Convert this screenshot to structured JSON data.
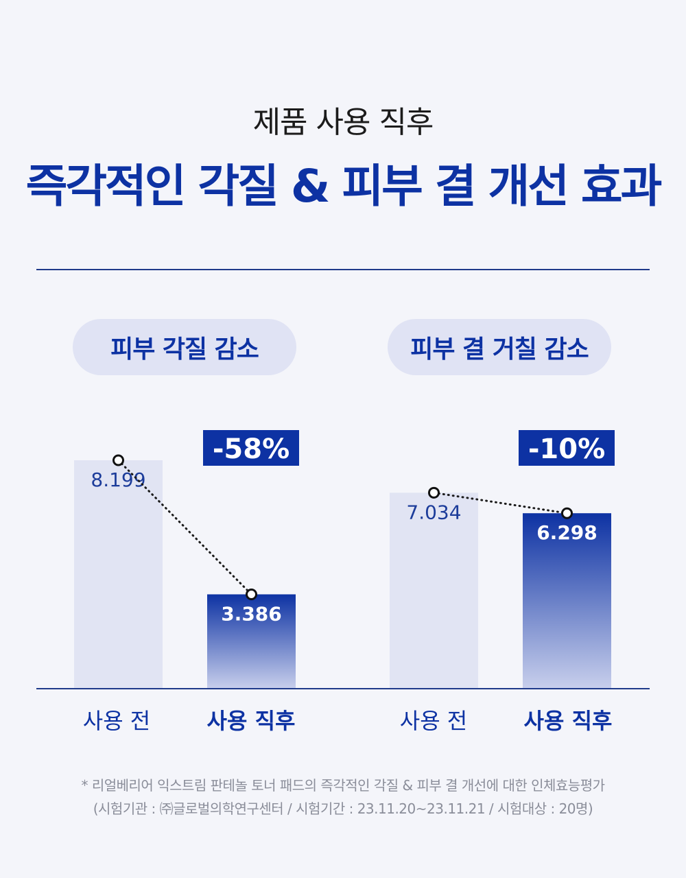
{
  "header": {
    "subtitle": "제품 사용 직후",
    "title": "즉각적인 각질 & 피부 결 개선 효과"
  },
  "colors": {
    "accent": "#0d32a3",
    "bar_before": "#e1e4f3",
    "pill_bg": "#e0e3f4"
  },
  "chart_data": [
    {
      "type": "bar",
      "title": "피부 각질 감소",
      "categories": [
        "사용 전",
        "사용 직후"
      ],
      "values": [
        8.199,
        3.386
      ],
      "value_labels": [
        "8.199",
        "3.386"
      ],
      "change_label": "-58%",
      "ylim": [
        0,
        9
      ]
    },
    {
      "type": "bar",
      "title": "피부 결 거칠 감소",
      "categories": [
        "사용 전",
        "사용 직후"
      ],
      "values": [
        7.034,
        6.298
      ],
      "value_labels": [
        "7.034",
        "6.298"
      ],
      "change_label": "-10%",
      "ylim": [
        0,
        9
      ]
    }
  ],
  "footnote": {
    "line1": "* 리얼베리어 익스트림 판테놀 토너 패드의 즉각적인 각질 & 피부 결 개선에 대한 인체효능평가",
    "line2": "(시험기관 : ㈜글로벌의학연구센터 / 시험기간 : 23.11.20~23.11.21 / 시험대상 : 20명)"
  }
}
